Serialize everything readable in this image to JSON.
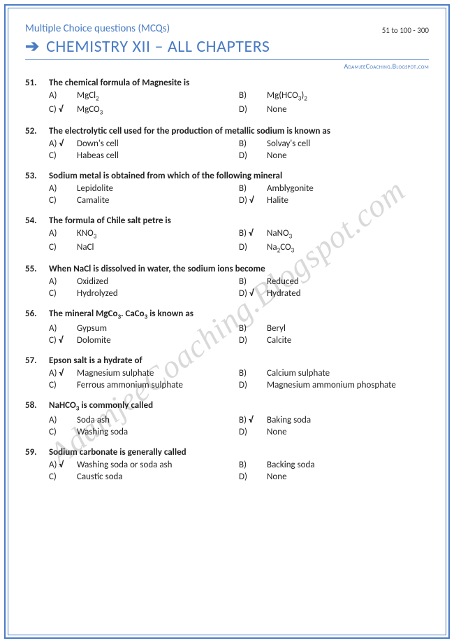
{
  "header": {
    "mcq_label": "Multiple Choice questions (MCQs)",
    "page_range": "51 to 100 - 300",
    "title": "CHEMISTRY XII – ALL CHAPTERS",
    "blog": "AdamjeeCoaching.Blogspot.com"
  },
  "watermark": "AdamjeeCoaching.Blogspot.com",
  "check_mark": "√",
  "questions": [
    {
      "num": "51.",
      "text": "The chemical formula of Magnesite is",
      "opts": [
        {
          "l": "A)",
          "correct": false,
          "t": "MgCl",
          "sub": "2"
        },
        {
          "l": "B)",
          "correct": false,
          "t": "Mg(HCO",
          "sub": "3",
          "tail": ")",
          "sub2": "2"
        },
        {
          "l": "C)",
          "correct": true,
          "t": "MgCO",
          "sub": "3"
        },
        {
          "l": "D)",
          "correct": false,
          "t": "None"
        }
      ]
    },
    {
      "num": "52.",
      "text": "The electrolytic cell used for the production of metallic sodium is known as",
      "opts": [
        {
          "l": "A)",
          "correct": true,
          "t": "Down's cell"
        },
        {
          "l": "B)",
          "correct": false,
          "t": "Solvay's cell"
        },
        {
          "l": "C)",
          "correct": false,
          "t": "Habeas cell"
        },
        {
          "l": "D)",
          "correct": false,
          "t": "None"
        }
      ]
    },
    {
      "num": "53.",
      "text": "Sodium metal is obtained from which of the following mineral",
      "opts": [
        {
          "l": "A)",
          "correct": false,
          "t": "Lepidolite"
        },
        {
          "l": "B)",
          "correct": false,
          "t": "Amblygonite"
        },
        {
          "l": "C)",
          "correct": false,
          "t": "Camalite"
        },
        {
          "l": "D)",
          "correct": true,
          "t": "Halite"
        }
      ]
    },
    {
      "num": "54.",
      "text": "The formula of Chile salt petre is",
      "opts": [
        {
          "l": "A)",
          "correct": false,
          "t": "KNO",
          "sub": "3"
        },
        {
          "l": "B)",
          "correct": true,
          "t": "NaNO",
          "sub": "3"
        },
        {
          "l": "C)",
          "correct": false,
          "t": "NaCl"
        },
        {
          "l": "D)",
          "correct": false,
          "t": "Na",
          "sub": "2",
          "tail": "CO",
          "sub2": "3"
        }
      ]
    },
    {
      "num": "55.",
      "text": "When NaCl is dissolved in water, the sodium ions become",
      "opts": [
        {
          "l": "A)",
          "correct": false,
          "t": "Oxidized"
        },
        {
          "l": "B)",
          "correct": false,
          "t": "Reduced"
        },
        {
          "l": "C)",
          "correct": false,
          "t": "Hydrolyzed"
        },
        {
          "l": "D)",
          "correct": true,
          "t": "Hydrated"
        }
      ]
    },
    {
      "num": "56.",
      "text_html": "The mineral MgCo<sub>3</sub>. CaCo<sub>3</sub> is known as",
      "opts": [
        {
          "l": "A)",
          "correct": false,
          "t": "Gypsum"
        },
        {
          "l": "B)",
          "correct": false,
          "t": "Beryl"
        },
        {
          "l": "C)",
          "correct": true,
          "t": "Dolomite"
        },
        {
          "l": "D)",
          "correct": false,
          "t": "Calcite"
        }
      ]
    },
    {
      "num": "57.",
      "text": "Epson salt is a hydrate of",
      "opts": [
        {
          "l": "A)",
          "correct": true,
          "t": "Magnesium sulphate"
        },
        {
          "l": "B)",
          "correct": false,
          "t": "Calcium sulphate"
        },
        {
          "l": "C)",
          "correct": false,
          "t": "Ferrous ammonium sulphate"
        },
        {
          "l": "D)",
          "correct": false,
          "t": "Magnesium ammonium phosphate"
        }
      ]
    },
    {
      "num": "58.",
      "text_html": "NaHCO<sub>3</sub> is commonly called",
      "opts": [
        {
          "l": "A)",
          "correct": false,
          "t": "Soda ash"
        },
        {
          "l": "B)",
          "correct": true,
          "t": "Baking soda"
        },
        {
          "l": "C)",
          "correct": false,
          "t": "Washing soda"
        },
        {
          "l": "D)",
          "correct": false,
          "t": "None"
        }
      ]
    },
    {
      "num": "59.",
      "text": "Sodium carbonate is generally called",
      "opts": [
        {
          "l": "A)",
          "correct": true,
          "t": "Washing soda or soda ash"
        },
        {
          "l": "B)",
          "correct": false,
          "t": "Backing soda"
        },
        {
          "l": "C)",
          "correct": false,
          "t": "Caustic soda"
        },
        {
          "l": "D)",
          "correct": false,
          "t": "None"
        }
      ]
    }
  ]
}
